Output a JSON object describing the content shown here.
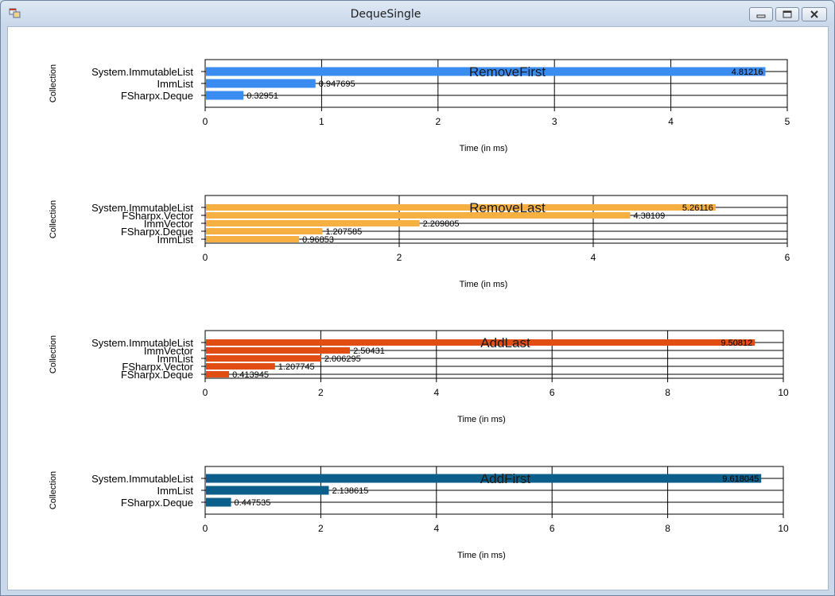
{
  "window": {
    "title": "DequeSingle",
    "icon": "application-icon",
    "controls": {
      "minimize": "minimize-icon",
      "maximize": "maximize-icon",
      "close": "close-icon"
    }
  },
  "colors": {
    "RemoveFirst": "#3b8cf0",
    "RemoveLast": "#f6b042",
    "AddLast": "#e14d12",
    "AddFirst": "#0b5f8a"
  },
  "chart_data": [
    {
      "type": "bar",
      "title": "RemoveFirst",
      "xlabel": "Time (in ms)",
      "ylabel": "Collection",
      "categories": [
        "System.ImmutableList",
        "ImmList",
        "FSharpx.Deque"
      ],
      "values": [
        4.81216,
        0.947695,
        0.32951
      ],
      "value_labels": [
        "4.81216",
        "0.947695",
        "0.32951"
      ],
      "xlim": [
        0,
        5
      ],
      "xticks": [
        0,
        1,
        2,
        3,
        4,
        5
      ],
      "grid": true
    },
    {
      "type": "bar",
      "title": "RemoveLast",
      "xlabel": "Time (in ms)",
      "ylabel": "Collection",
      "categories": [
        "System.ImmutableList",
        "FSharpx.Vector",
        "ImmVector",
        "FSharpx.Deque",
        "ImmList"
      ],
      "values": [
        5.26116,
        4.38109,
        2.209805,
        1.207585,
        0.96853
      ],
      "value_labels": [
        "5.26116",
        "4.38109",
        "2.209805",
        "1.207585",
        "0.96853"
      ],
      "xlim": [
        0,
        6
      ],
      "xticks": [
        0,
        2,
        4,
        6
      ],
      "grid": true
    },
    {
      "type": "bar",
      "title": "AddLast",
      "xlabel": "Time (in ms)",
      "ylabel": "Collection",
      "categories": [
        "System.ImmutableList",
        "ImmVector",
        "ImmList",
        "FSharpx.Vector",
        "FSharpx.Deque"
      ],
      "values": [
        9.50812,
        2.50431,
        2.006295,
        1.207745,
        0.413945
      ],
      "value_labels": [
        "9.50812",
        "2.50431",
        "2.006295",
        "1.207745",
        "0.413945"
      ],
      "xlim": [
        0,
        10
      ],
      "xticks": [
        0,
        2,
        4,
        6,
        8,
        10
      ],
      "grid": true
    },
    {
      "type": "bar",
      "title": "AddFirst",
      "xlabel": "Time (in ms)",
      "ylabel": "Collection",
      "categories": [
        "System.ImmutableList",
        "ImmList",
        "FSharpx.Deque"
      ],
      "values": [
        9.618045,
        2.138615,
        0.447535
      ],
      "value_labels": [
        "9.618045",
        "2.138615",
        "0.447535"
      ],
      "xlim": [
        0,
        10
      ],
      "xticks": [
        0,
        2,
        4,
        6,
        8,
        10
      ],
      "grid": true
    }
  ]
}
